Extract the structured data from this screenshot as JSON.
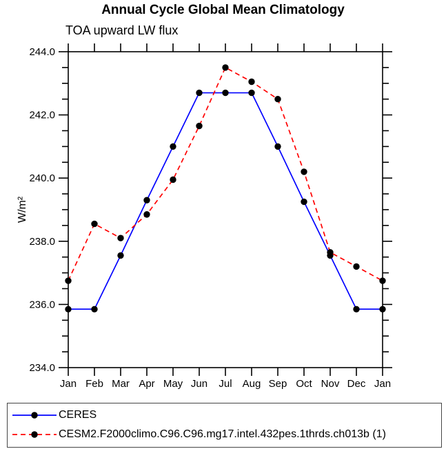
{
  "chart_data": {
    "type": "line",
    "title": "Annual Cycle Global Mean Climatology",
    "subtitle": "TOA upward LW flux",
    "ylabel": "W/m²",
    "xlabel": "",
    "categories": [
      "Jan",
      "Feb",
      "Mar",
      "Apr",
      "May",
      "Jun",
      "Jul",
      "Aug",
      "Sep",
      "Oct",
      "Nov",
      "Dec",
      "Jan"
    ],
    "ylim": [
      234.0,
      244.0
    ],
    "ytick_major": [
      234.0,
      236.0,
      238.0,
      240.0,
      242.0,
      244.0
    ],
    "ytick_labels": [
      "234.0",
      "236.0",
      "238.0",
      "240.0",
      "242.0",
      "244.0"
    ],
    "ytick_minor_step": 0.5,
    "grid": false,
    "legend_position": "bottom",
    "axis_color": "#000000",
    "marker_shape": "circle",
    "series": [
      {
        "name": "CERES",
        "color": "#0000ff",
        "line_style": "solid",
        "marker_color": "#000000",
        "values": [
          235.85,
          235.85,
          237.55,
          239.3,
          241.0,
          242.7,
          242.7,
          242.7,
          241.0,
          239.25,
          237.55,
          235.85,
          235.85
        ]
      },
      {
        "name": "CESM2.F2000climo.C96.C96.mg17.intel.432pes.1thrds.ch013b (1)",
        "color": "#ff0000",
        "line_style": "dashed",
        "marker_color": "#000000",
        "values": [
          236.75,
          238.55,
          238.1,
          238.85,
          239.95,
          241.65,
          243.5,
          243.05,
          242.5,
          240.2,
          237.65,
          237.2,
          236.75
        ]
      }
    ]
  }
}
